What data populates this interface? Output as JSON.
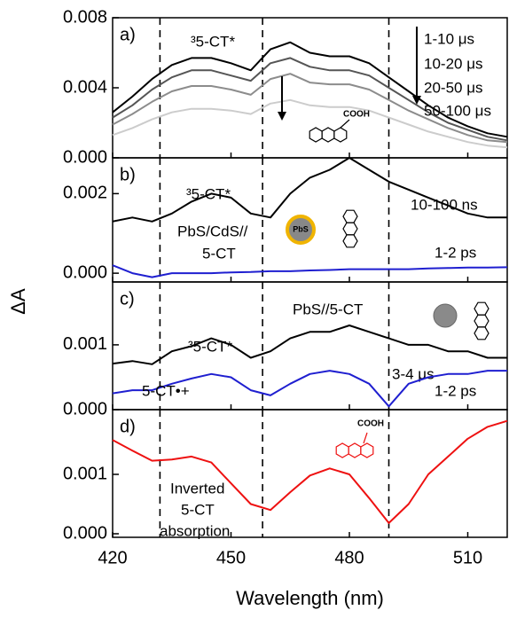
{
  "chart_data": [
    {
      "type": "line",
      "panel_label": "a)",
      "x": [
        420,
        425,
        430,
        435,
        440,
        445,
        450,
        455,
        460,
        465,
        470,
        475,
        480,
        485,
        490,
        495,
        500,
        505,
        510,
        515,
        520
      ],
      "xlim": [
        420,
        520
      ],
      "xticks": [
        420,
        450,
        480,
        510
      ],
      "ylim": [
        0,
        0.008
      ],
      "yticks": [
        {
          "value": 0,
          "label": "0.000"
        },
        {
          "value": 0.004,
          "label": "0.004"
        },
        {
          "value": 0.008,
          "label": "0.008"
        }
      ],
      "vlines": [
        432,
        458,
        490
      ],
      "annotations": [
        "³5-CT*",
        "COOH"
      ],
      "series": [
        {
          "name": "1-10 μs",
          "color": "#000000",
          "values": [
            0.0026,
            0.0035,
            0.0045,
            0.0053,
            0.0057,
            0.0057,
            0.0054,
            0.005,
            0.0062,
            0.0066,
            0.006,
            0.0058,
            0.0058,
            0.0054,
            0.0046,
            0.0038,
            0.003,
            0.0023,
            0.0018,
            0.0014,
            0.0012
          ]
        },
        {
          "name": "10-20 μs",
          "color": "#555555",
          "values": [
            0.0023,
            0.003,
            0.0039,
            0.0046,
            0.005,
            0.005,
            0.0047,
            0.0044,
            0.0054,
            0.0057,
            0.0052,
            0.005,
            0.005,
            0.0047,
            0.004,
            0.0033,
            0.0026,
            0.002,
            0.0016,
            0.0012,
            0.001
          ]
        },
        {
          "name": "20-50 μs",
          "color": "#8c8c8c",
          "values": [
            0.0019,
            0.0025,
            0.0032,
            0.0038,
            0.0041,
            0.0041,
            0.0039,
            0.0036,
            0.0045,
            0.0048,
            0.0043,
            0.0042,
            0.0042,
            0.0039,
            0.0033,
            0.0027,
            0.0022,
            0.0017,
            0.0013,
            0.001,
            0.0009
          ]
        },
        {
          "name": "50-100 μs",
          "color": "#cccccc",
          "values": [
            0.0013,
            0.0017,
            0.0022,
            0.0026,
            0.0028,
            0.0028,
            0.0027,
            0.0025,
            0.0031,
            0.0033,
            0.003,
            0.0029,
            0.0029,
            0.0027,
            0.0023,
            0.0019,
            0.0015,
            0.0012,
            0.0009,
            0.0007,
            0.0006
          ]
        }
      ]
    },
    {
      "type": "line",
      "panel_label": "b)",
      "ylabel": "ΔA",
      "x": [
        420,
        425,
        430,
        435,
        440,
        445,
        450,
        455,
        460,
        465,
        470,
        475,
        480,
        485,
        490,
        495,
        500,
        505,
        510,
        515,
        520
      ],
      "xlim": [
        420,
        520
      ],
      "xticks": [
        420,
        450,
        480,
        510
      ],
      "ylim": [
        -0.00022,
        0.0029
      ],
      "yticks": [
        {
          "value": 0,
          "label": "0.000"
        },
        {
          "value": 0.002,
          "label": "0.002"
        }
      ],
      "vlines": [
        432,
        458,
        490
      ],
      "annotations": [
        "³5-CT*",
        "PbS/CdS//",
        "5-CT",
        "PbS"
      ],
      "series": [
        {
          "name": "10-100 ns",
          "color": "#000000",
          "values": [
            0.0013,
            0.0014,
            0.0013,
            0.0015,
            0.0018,
            0.002,
            0.0019,
            0.0015,
            0.0014,
            0.002,
            0.0024,
            0.0026,
            0.0029,
            0.0026,
            0.0023,
            0.0021,
            0.0019,
            0.0017,
            0.0015,
            0.0014,
            0.0014
          ]
        },
        {
          "name": "1-2 ps",
          "color": "#1f1fd0",
          "values": [
            0.0002,
            0.0,
            -0.0001,
            0.0,
            0.0,
            0.0,
            2e-05,
            3e-05,
            5e-05,
            5e-05,
            7e-05,
            8e-05,
            0.0001,
            0.0001,
            0.0001,
            0.0001,
            0.00012,
            0.00013,
            0.00014,
            0.00014,
            0.00015
          ]
        }
      ]
    },
    {
      "type": "line",
      "panel_label": "c)",
      "x": [
        420,
        425,
        430,
        435,
        440,
        445,
        450,
        455,
        460,
        465,
        470,
        475,
        480,
        485,
        490,
        495,
        500,
        505,
        510,
        515,
        520
      ],
      "xlim": [
        420,
        520
      ],
      "xticks": [
        420,
        450,
        480,
        510
      ],
      "ylim": [
        0,
        0.00197
      ],
      "yticks": [
        {
          "value": 0,
          "label": "0.000"
        },
        {
          "value": 0.001,
          "label": "0.001"
        }
      ],
      "vlines": [
        432,
        458,
        490
      ],
      "annotations": [
        "³5-CT*",
        "PbS//5-CT",
        "5-CT•+",
        "PbS"
      ],
      "series": [
        {
          "name": "3-4 μs",
          "color": "#000000",
          "values": [
            0.00071,
            0.00075,
            0.0007,
            0.0009,
            0.00098,
            0.0011,
            0.001,
            0.0008,
            0.0009,
            0.0011,
            0.0012,
            0.0012,
            0.0013,
            0.0012,
            0.0011,
            0.001,
            0.001,
            0.0009,
            0.0009,
            0.0008,
            0.0008
          ]
        },
        {
          "name": "1-2 ps",
          "color": "#1f1fd0",
          "values": [
            0.00025,
            0.0003,
            0.0003,
            0.0004,
            0.00048,
            0.00055,
            0.0005,
            0.0003,
            0.00022,
            0.0004,
            0.00055,
            0.0006,
            0.00055,
            0.0004,
            5e-05,
            0.0004,
            0.0005,
            0.00055,
            0.00055,
            0.0006,
            0.0006
          ]
        }
      ]
    },
    {
      "type": "line",
      "panel_label": "d)",
      "xlabel": "Wavelength (nm)",
      "x": [
        420,
        425,
        430,
        435,
        440,
        445,
        450,
        455,
        460,
        465,
        470,
        475,
        480,
        485,
        490,
        495,
        500,
        505,
        510,
        515,
        520
      ],
      "xlim": [
        420,
        520
      ],
      "xticks": [
        420,
        450,
        480,
        510
      ],
      "ylim": [
        -6e-05,
        0.00209
      ],
      "yticks": [
        {
          "value": 0,
          "label": "0.000"
        },
        {
          "value": 0.001,
          "label": "0.001"
        }
      ],
      "vlines": [
        432,
        458,
        490
      ],
      "annotations": [
        "Inverted",
        "5-CT",
        "absorption",
        "COOH"
      ],
      "series": [
        {
          "color": "#ee1111",
          "values": [
            0.00158,
            0.0014,
            0.00123,
            0.00125,
            0.0013,
            0.0012,
            0.00085,
            0.0005,
            0.0004,
            0.0007,
            0.00098,
            0.0011,
            0.001,
            0.0006,
            0.00018,
            0.0005,
            0.001,
            0.0013,
            0.0016,
            0.0018,
            0.0019
          ]
        }
      ]
    }
  ]
}
